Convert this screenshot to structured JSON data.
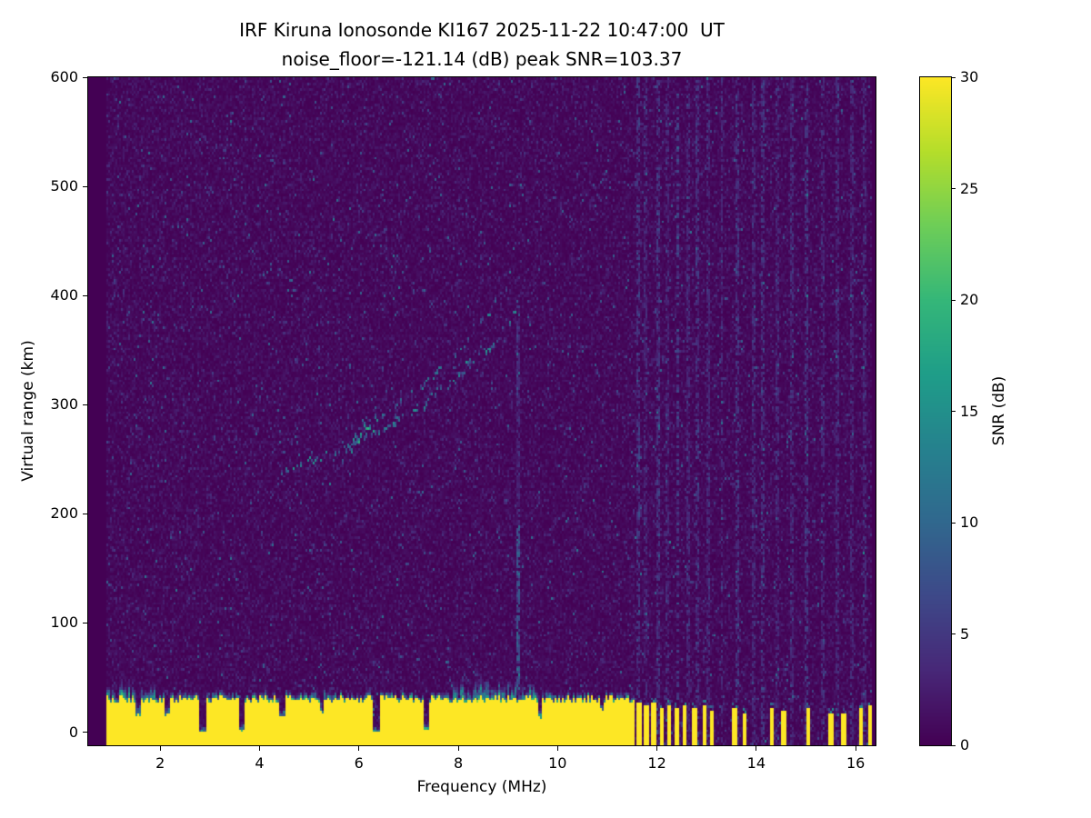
{
  "chart_data": {
    "type": "heatmap",
    "title": "IRF Kiruna Ionosonde KI167 2025-11-22 10:47:00  UT",
    "subtitle": "noise_floor=-121.14 (dB) peak SNR=103.37",
    "xlabel": "Frequency (MHz)",
    "ylabel": "Virtual range (km)",
    "colorbar_label": "SNR (dB)",
    "colormap": "viridis",
    "colormap_stops": [
      "#440154",
      "#482878",
      "#3e4989",
      "#31688e",
      "#26828e",
      "#1f9e89",
      "#35b779",
      "#6ece58",
      "#b5de2b",
      "#fde725"
    ],
    "grid": false,
    "legend": "none",
    "xlim": [
      0.55,
      16.4
    ],
    "ylim": [
      -12,
      600
    ],
    "clim": [
      0,
      30
    ],
    "xticks": [
      2,
      4,
      6,
      8,
      10,
      12,
      14,
      16
    ],
    "yticks": [
      0,
      100,
      200,
      300,
      400,
      500,
      600
    ],
    "colorbar_ticks": [
      0,
      5,
      10,
      15,
      20,
      25,
      30
    ],
    "features": {
      "background_noise": {
        "mean_snr_db": 0.9,
        "speckle_max_db": 9,
        "data_freq_range": [
          0.93,
          16.33
        ]
      },
      "ground_clutter": {
        "freq_range": [
          0.93,
          11.55
        ],
        "base_height_km": 26,
        "height_jitter_km": 8,
        "snr_db": 30,
        "fuzz_regions": [
          {
            "freq_range": [
              0.93,
              1.9
            ],
            "extra_km": 14
          },
          {
            "freq_range": [
              5.0,
              5.6
            ],
            "extra_km": 8
          },
          {
            "freq_range": [
              7.9,
              9.7
            ],
            "extra_km": 16
          }
        ],
        "notches": [
          {
            "freq": 1.55,
            "width": 0.05,
            "depth": 0.5
          },
          {
            "freq": 2.15,
            "width": 0.05,
            "depth": 0.45
          },
          {
            "freq": 2.85,
            "width": 0.07,
            "depth": 1.0
          },
          {
            "freq": 3.65,
            "width": 0.07,
            "depth": 0.95
          },
          {
            "freq": 4.45,
            "width": 0.05,
            "depth": 0.5
          },
          {
            "freq": 5.25,
            "width": 0.04,
            "depth": 0.4
          },
          {
            "freq": 6.35,
            "width": 0.08,
            "depth": 1.0
          },
          {
            "freq": 7.35,
            "width": 0.06,
            "depth": 0.9
          },
          {
            "freq": 9.65,
            "width": 0.05,
            "depth": 0.5
          },
          {
            "freq": 10.9,
            "width": 0.04,
            "depth": 0.35
          }
        ]
      },
      "clutter_bars": [
        {
          "freq": 11.65,
          "height_km": 26
        },
        {
          "freq": 11.8,
          "height_km": 24
        },
        {
          "freq": 11.95,
          "height_km": 27
        },
        {
          "freq": 12.1,
          "height_km": 23
        },
        {
          "freq": 12.25,
          "height_km": 25
        },
        {
          "freq": 12.4,
          "height_km": 22
        },
        {
          "freq": 12.55,
          "height_km": 24
        },
        {
          "freq": 12.75,
          "height_km": 22
        },
        {
          "freq": 12.95,
          "height_km": 25
        },
        {
          "freq": 13.1,
          "height_km": 20
        },
        {
          "freq": 13.55,
          "height_km": 22
        },
        {
          "freq": 13.75,
          "height_km": 18
        },
        {
          "freq": 14.3,
          "height_km": 22
        },
        {
          "freq": 14.55,
          "height_km": 19
        },
        {
          "freq": 15.05,
          "height_km": 22
        },
        {
          "freq": 15.5,
          "height_km": 18
        },
        {
          "freq": 15.75,
          "height_km": 16
        },
        {
          "freq": 16.1,
          "height_km": 22
        },
        {
          "freq": 16.28,
          "height_km": 24
        }
      ],
      "echo_traces": [
        {
          "name": "f-trace-lower",
          "snr_db": 12,
          "density": 0.55,
          "thickness_km": 8,
          "points": [
            [
              4.45,
              238
            ],
            [
              5.0,
              248
            ],
            [
              5.5,
              257
            ],
            [
              6.0,
              266
            ],
            [
              6.5,
              278
            ],
            [
              7.0,
              292
            ],
            [
              7.5,
              308
            ],
            [
              8.0,
              326
            ],
            [
              8.5,
              348
            ],
            [
              9.0,
              372
            ],
            [
              9.25,
              388
            ]
          ]
        },
        {
          "name": "f-trace-upper",
          "snr_db": 10,
          "density": 0.35,
          "thickness_km": 8,
          "points": [
            [
              5.9,
              272
            ],
            [
              6.4,
              288
            ],
            [
              7.0,
              308
            ],
            [
              7.5,
              326
            ],
            [
              8.0,
              348
            ],
            [
              8.5,
              374
            ],
            [
              8.9,
              402
            ],
            [
              9.1,
              420
            ]
          ]
        },
        {
          "name": "trace-blob",
          "snr_db": 15,
          "density": 0.9,
          "thickness_km": 14,
          "points": [
            [
              5.7,
              255
            ],
            [
              6.0,
              268
            ],
            [
              6.3,
              282
            ],
            [
              6.5,
              292
            ]
          ]
        }
      ],
      "interference_lines": [
        {
          "freq": 9.2,
          "range_km": [
            35,
            380
          ],
          "strong_range_km": [
            40,
            190
          ],
          "snr_db": 8
        }
      ],
      "rfi_columns": [
        {
          "freq": 11.62,
          "snr_db": 4
        },
        {
          "freq": 11.78,
          "snr_db": 3
        },
        {
          "freq": 12.02,
          "snr_db": 4
        },
        {
          "freq": 12.22,
          "snr_db": 3
        },
        {
          "freq": 12.42,
          "snr_db": 5
        },
        {
          "freq": 12.62,
          "snr_db": 3
        },
        {
          "freq": 12.82,
          "snr_db": 4
        },
        {
          "freq": 13.02,
          "snr_db": 3
        },
        {
          "freq": 13.3,
          "snr_db": 3
        },
        {
          "freq": 13.62,
          "snr_db": 4
        },
        {
          "freq": 13.95,
          "snr_db": 3
        },
        {
          "freq": 14.12,
          "snr_db": 4
        },
        {
          "freq": 14.42,
          "snr_db": 3
        },
        {
          "freq": 14.72,
          "snr_db": 3
        },
        {
          "freq": 15.02,
          "snr_db": 4
        },
        {
          "freq": 15.32,
          "snr_db": 3
        },
        {
          "freq": 15.62,
          "snr_db": 3
        },
        {
          "freq": 15.92,
          "snr_db": 3
        },
        {
          "freq": 16.18,
          "snr_db": 3
        }
      ]
    }
  }
}
